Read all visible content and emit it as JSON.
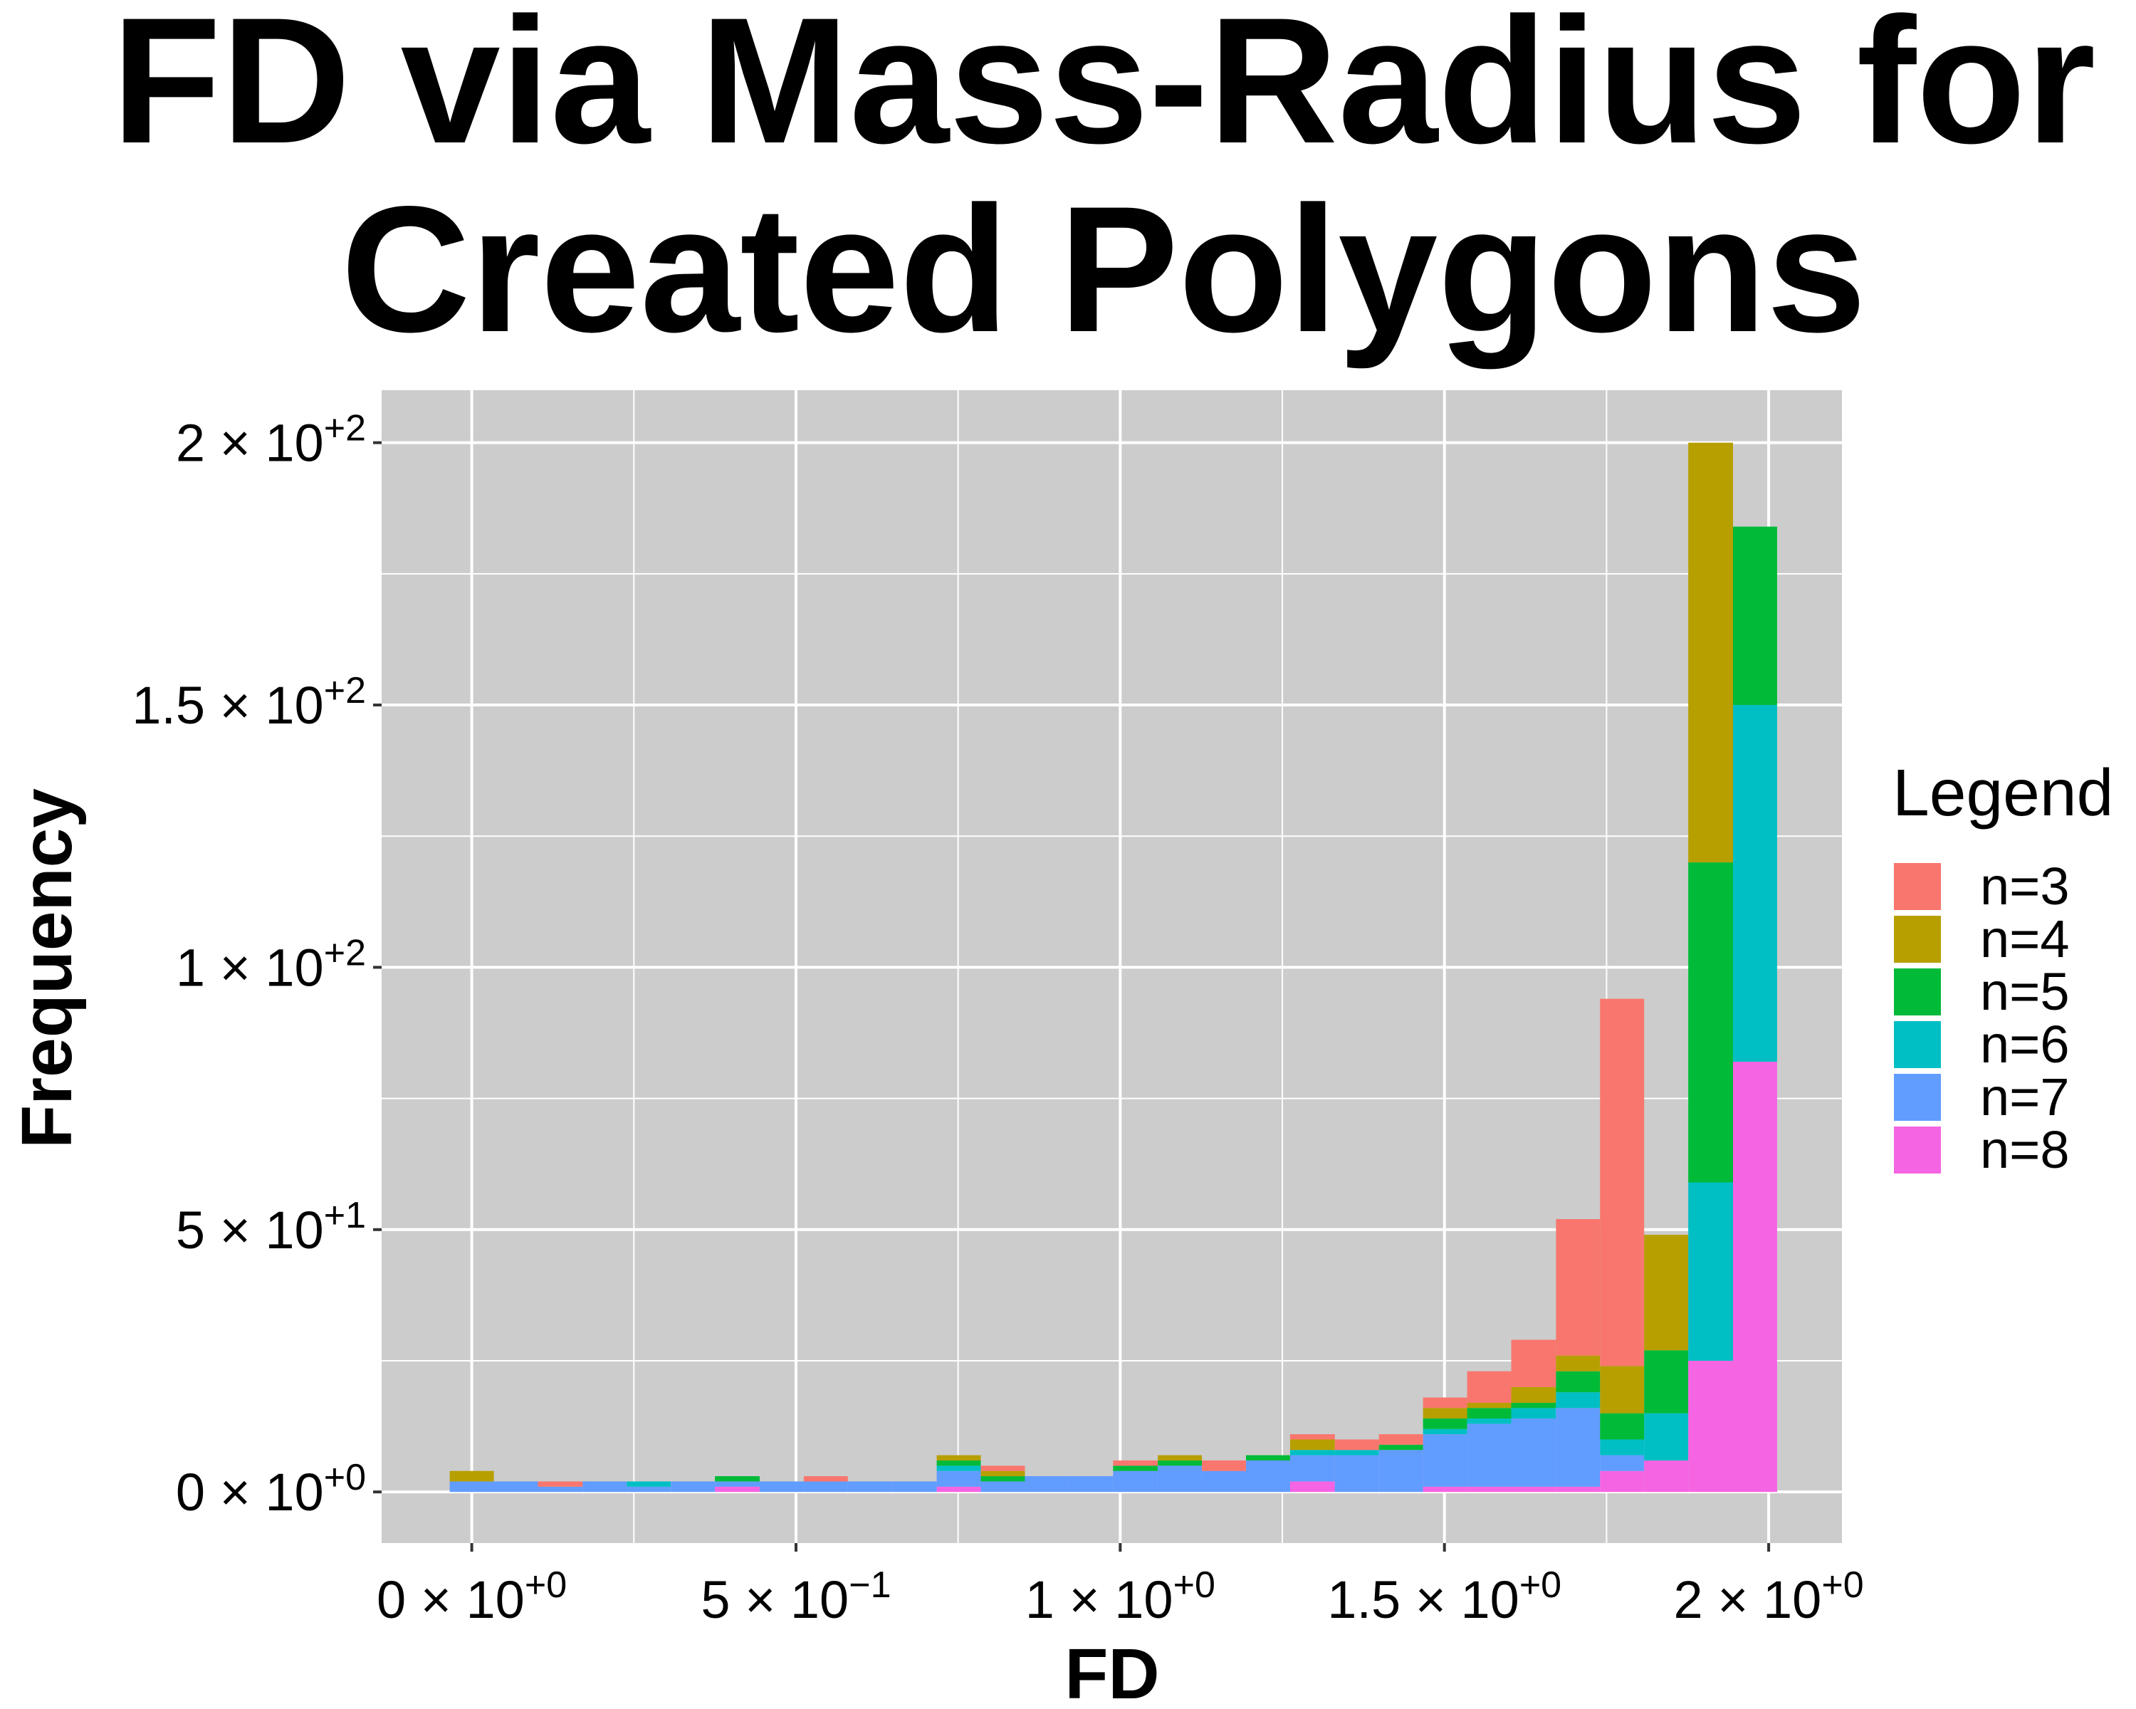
{
  "chart_data": {
    "type": "histogram",
    "title": [
      "FD via Mass-Radius for",
      "Created Polygons"
    ],
    "x_label": "FD",
    "y_label": "Frequency",
    "legend_title": "Legend",
    "legend_position": "right",
    "grid": true,
    "stacked": true,
    "xlim": [
      -0.139,
      2.113
    ],
    "ylim": [
      -9.75,
      210
    ],
    "xticks": [
      {
        "value": 0,
        "label": "0 × 10",
        "exponent": "+0"
      },
      {
        "value": 0.5,
        "label": "5 × 10",
        "exponent": "−1"
      },
      {
        "value": 1,
        "label": "1 × 10",
        "exponent": "+0"
      },
      {
        "value": 1.5,
        "label": "1.5 × 10",
        "exponent": "+0"
      },
      {
        "value": 2,
        "label": "2 × 10",
        "exponent": "+0"
      }
    ],
    "yticks": [
      {
        "value": 0,
        "label": "0 × 10",
        "exponent": "+0"
      },
      {
        "value": 50,
        "label": "5 × 10",
        "exponent": "+1"
      },
      {
        "value": 100,
        "label": "1 × 10",
        "exponent": "+2"
      },
      {
        "value": 150,
        "label": "1.5 × 10",
        "exponent": "+2"
      },
      {
        "value": 200,
        "label": "2 × 10",
        "exponent": "+2"
      }
    ],
    "bins": [
      -0.034,
      0.034,
      0.102,
      0.171,
      0.239,
      0.307,
      0.375,
      0.444,
      0.512,
      0.58,
      0.648,
      0.717,
      0.785,
      0.853,
      0.921,
      0.989,
      1.058,
      1.126,
      1.194,
      1.262,
      1.331,
      1.399,
      1.467,
      1.535,
      1.603,
      1.672,
      1.74,
      1.808,
      1.876,
      1.945,
      2.013
    ],
    "series": [
      {
        "name": "n=3",
        "color": "#F8766D",
        "values": [
          0,
          0,
          1,
          0,
          0,
          0,
          0,
          0,
          1,
          0,
          0,
          0,
          1,
          0,
          0,
          1,
          0,
          2,
          0,
          1,
          2,
          2,
          2,
          6,
          9,
          26,
          70,
          0,
          0,
          0
        ]
      },
      {
        "name": "n=4",
        "color": "#B79F00",
        "values": [
          2,
          0,
          0,
          0,
          0,
          0,
          0,
          0,
          0,
          0,
          0,
          1,
          1,
          0,
          0,
          0,
          1,
          0,
          0,
          2,
          0,
          0,
          2,
          1,
          3,
          3,
          9,
          22,
          80,
          0
        ]
      },
      {
        "name": "n=5",
        "color": "#00BA38",
        "values": [
          0,
          0,
          0,
          0,
          0,
          0,
          1,
          0,
          0,
          0,
          0,
          1,
          1,
          0,
          0,
          1,
          1,
          0,
          1,
          0,
          0,
          1,
          2,
          2,
          1,
          4,
          5,
          12,
          61,
          34
        ]
      },
      {
        "name": "n=6",
        "color": "#00BFC4",
        "values": [
          0,
          0,
          0,
          0,
          1,
          0,
          0,
          0,
          0,
          0,
          0,
          1,
          0,
          0,
          0,
          0,
          0,
          0,
          0,
          1,
          1,
          0,
          1,
          1,
          2,
          3,
          3,
          9,
          34,
          68
        ]
      },
      {
        "name": "n=7",
        "color": "#619CFF",
        "values": [
          2,
          2,
          1,
          2,
          1,
          2,
          1,
          2,
          2,
          2,
          2,
          3,
          2,
          3,
          3,
          4,
          5,
          4,
          6,
          5,
          7,
          8,
          10,
          12,
          13,
          15,
          3,
          0,
          0,
          0
        ]
      },
      {
        "name": "n=8",
        "color": "#F564E3",
        "values": [
          0,
          0,
          0,
          0,
          0,
          0,
          1,
          0,
          0,
          0,
          0,
          1,
          0,
          0,
          0,
          0,
          0,
          0,
          0,
          2,
          0,
          0,
          1,
          1,
          1,
          1,
          4,
          6,
          25,
          82
        ]
      }
    ]
  }
}
